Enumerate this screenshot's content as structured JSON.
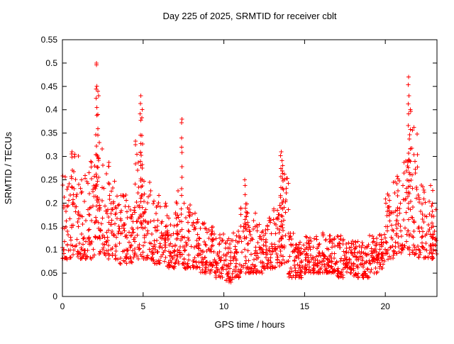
{
  "chart_data": {
    "type": "scatter",
    "title": "Day 225 of 2025, SRMTID for receiver cblt",
    "xlabel": "GPS time / hours",
    "ylabel": "SRMTID / TECUs",
    "xlim": [
      0,
      23.2
    ],
    "ylim": [
      0,
      0.55
    ],
    "xticks": [
      0,
      5,
      10,
      15,
      20
    ],
    "xtick_labels": [
      "0",
      "5",
      "10",
      "15",
      "20"
    ],
    "yticks": [
      0,
      0.05,
      0.1,
      0.15,
      0.2,
      0.25,
      0.3,
      0.35,
      0.4,
      0.45,
      0.5,
      0.55
    ],
    "ytick_labels": [
      "0",
      "0.05",
      "0.1",
      "0.15",
      "0.2",
      "0.25",
      "0.3",
      "0.35",
      "0.4",
      "0.45",
      "0.5",
      "0.55"
    ],
    "grid": false,
    "legend": "none",
    "marker": "plus",
    "marker_color": "#ff0000",
    "marker_size": 3,
    "axis_color": "#000000",
    "seed": 20250225,
    "series_name": "SRMTID",
    "density_bins": [
      [
        0.25,
        0.08,
        0.27,
        40
      ],
      [
        0.75,
        0.08,
        0.31,
        40
      ],
      [
        1.25,
        0.08,
        0.26,
        40
      ],
      [
        1.75,
        0.08,
        0.29,
        40
      ],
      [
        2.25,
        0.09,
        0.33,
        40
      ],
      [
        2.75,
        0.08,
        0.3,
        40
      ],
      [
        3.25,
        0.08,
        0.26,
        40
      ],
      [
        3.75,
        0.07,
        0.22,
        40
      ],
      [
        4.25,
        0.07,
        0.2,
        40
      ],
      [
        4.75,
        0.08,
        0.34,
        40
      ],
      [
        5.25,
        0.08,
        0.25,
        40
      ],
      [
        5.75,
        0.07,
        0.22,
        40
      ],
      [
        6.25,
        0.07,
        0.2,
        40
      ],
      [
        6.75,
        0.06,
        0.18,
        40
      ],
      [
        7.25,
        0.07,
        0.24,
        40
      ],
      [
        7.75,
        0.06,
        0.2,
        40
      ],
      [
        8.25,
        0.06,
        0.18,
        40
      ],
      [
        8.75,
        0.05,
        0.16,
        40
      ],
      [
        9.25,
        0.05,
        0.15,
        40
      ],
      [
        9.75,
        0.04,
        0.14,
        40
      ],
      [
        10.25,
        0.03,
        0.13,
        40
      ],
      [
        10.75,
        0.04,
        0.14,
        40
      ],
      [
        11.25,
        0.05,
        0.2,
        40
      ],
      [
        11.75,
        0.05,
        0.18,
        40
      ],
      [
        12.25,
        0.05,
        0.16,
        40
      ],
      [
        12.75,
        0.06,
        0.17,
        40
      ],
      [
        13.25,
        0.06,
        0.22,
        40
      ],
      [
        13.75,
        0.07,
        0.27,
        40
      ],
      [
        14.25,
        0.04,
        0.14,
        40
      ],
      [
        14.75,
        0.04,
        0.12,
        40
      ],
      [
        15.25,
        0.05,
        0.13,
        40
      ],
      [
        15.75,
        0.05,
        0.14,
        40
      ],
      [
        16.25,
        0.05,
        0.14,
        40
      ],
      [
        16.75,
        0.05,
        0.13,
        40
      ],
      [
        17.25,
        0.04,
        0.13,
        40
      ],
      [
        17.75,
        0.05,
        0.12,
        40
      ],
      [
        18.25,
        0.04,
        0.12,
        40
      ],
      [
        18.75,
        0.04,
        0.12,
        40
      ],
      [
        19.25,
        0.05,
        0.14,
        40
      ],
      [
        19.75,
        0.06,
        0.16,
        40
      ],
      [
        20.25,
        0.08,
        0.22,
        40
      ],
      [
        20.75,
        0.09,
        0.26,
        40
      ],
      [
        21.25,
        0.1,
        0.3,
        40
      ],
      [
        21.75,
        0.09,
        0.38,
        40
      ],
      [
        22.25,
        0.08,
        0.26,
        40
      ],
      [
        22.75,
        0.08,
        0.24,
        40
      ],
      [
        23.05,
        0.09,
        0.2,
        20
      ]
    ],
    "spikes": [
      [
        0.6,
        0.15,
        0.31,
        5
      ],
      [
        2.1,
        0.15,
        0.5,
        16
      ],
      [
        2.2,
        0.14,
        0.44,
        10
      ],
      [
        4.85,
        0.14,
        0.43,
        14
      ],
      [
        4.95,
        0.13,
        0.4,
        8
      ],
      [
        7.4,
        0.12,
        0.38,
        12
      ],
      [
        11.3,
        0.1,
        0.25,
        6
      ],
      [
        13.55,
        0.1,
        0.31,
        12
      ],
      [
        13.65,
        0.1,
        0.28,
        8
      ],
      [
        21.45,
        0.14,
        0.47,
        14
      ],
      [
        21.55,
        0.13,
        0.4,
        8
      ]
    ]
  }
}
